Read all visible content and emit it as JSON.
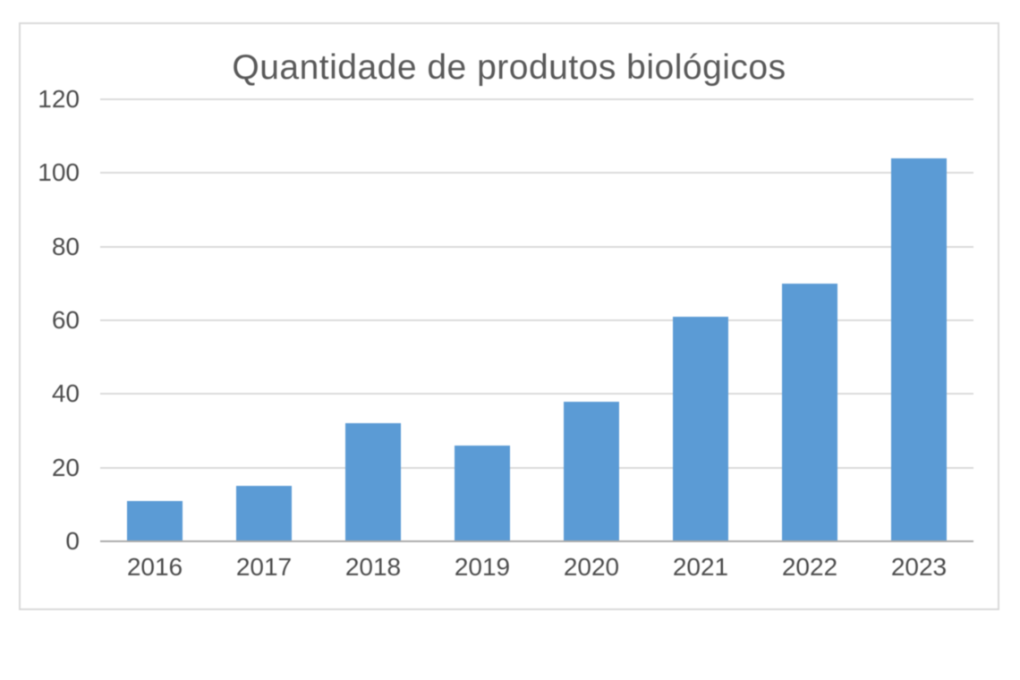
{
  "chart_data": {
    "type": "bar",
    "title": "Quantidade de produtos biológicos",
    "categories": [
      "2016",
      "2017",
      "2018",
      "2019",
      "2020",
      "2021",
      "2022",
      "2023"
    ],
    "values": [
      11,
      15,
      32,
      26,
      38,
      61,
      70,
      104
    ],
    "xlabel": "",
    "ylabel": "",
    "ylim": [
      0,
      120
    ],
    "yticks": [
      0,
      20,
      40,
      60,
      80,
      100,
      120
    ],
    "grid": true,
    "legend": false,
    "colors": {
      "bar": "#5b9bd5",
      "gridline": "#dadada",
      "axis_line": "#a9a9a9",
      "frame_border": "#d9d9d9",
      "title_text": "#595959",
      "tick_text": "#4d4d4d",
      "background": "#ffffff"
    }
  }
}
